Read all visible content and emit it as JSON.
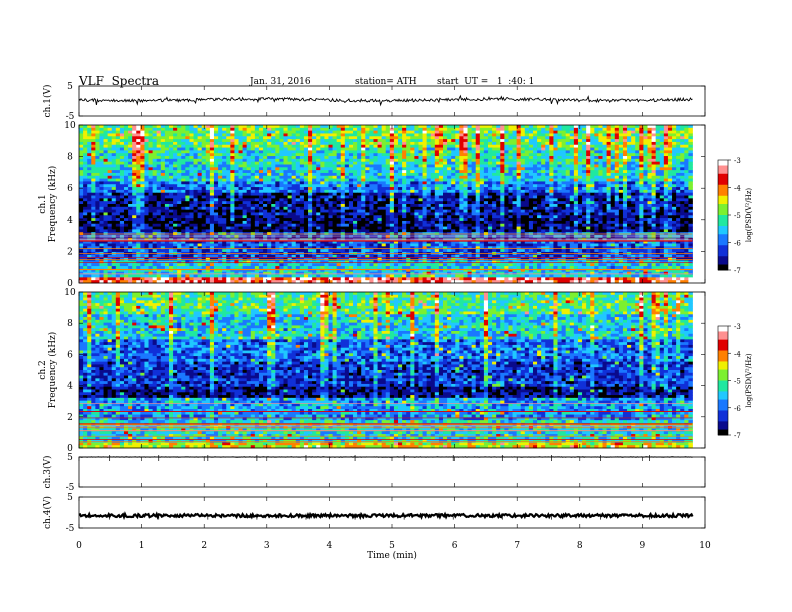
{
  "header": {
    "title": "VLF  Spectra",
    "date": "Jan. 31, 2016",
    "station": "station= ATH",
    "start": "start  UT =   1  :40: 1"
  },
  "colors": {
    "spectrogram_palette": [
      "#000000",
      "#0a0a8c",
      "#1030d8",
      "#1a78ff",
      "#20c8ff",
      "#20e8a0",
      "#7cf030",
      "#f0f000",
      "#ff8000",
      "#e00000",
      "#ff9090",
      "#ffffff"
    ],
    "trace": "#000000"
  },
  "chart_data": [
    {
      "type": "line",
      "panel": "ch1-waveform",
      "ylabel": "ch.1(V)",
      "ylim": [
        -5,
        5
      ],
      "yticks": [
        "5",
        "-5"
      ],
      "x_range_min": [
        0,
        9.8
      ],
      "baseline_V": 0.4,
      "description_values": "noisy waveform near +0.4 V with sporadic spikes"
    },
    {
      "type": "heatmap",
      "panel": "ch1-spectrogram",
      "ylabel": "ch.1\nFrequency (kHz)",
      "ylabel_lines": [
        "ch.1",
        "Frequency  (kHz)"
      ],
      "ylim": [
        0,
        10
      ],
      "yticks": [
        "0",
        "2",
        "4",
        "6",
        "8",
        "10"
      ],
      "x_range_min": [
        0,
        9.8
      ],
      "colorbar": {
        "label": "log(PSD(V²/Hz)",
        "range": [
          -7,
          -3
        ],
        "ticks": [
          "-3",
          "-4",
          "-5",
          "-6",
          "-7"
        ]
      },
      "bands_khz": [
        {
          "f": [
            0.0,
            0.3
          ],
          "level": -3.5
        },
        {
          "f": [
            0.3,
            1.5
          ],
          "level": -5.5
        },
        {
          "f": [
            1.5,
            2.6
          ],
          "level": -6.2
        },
        {
          "f": [
            2.6,
            3.2
          ],
          "level": -6.0
        },
        {
          "f": [
            3.2,
            4.2
          ],
          "level": -6.8
        },
        {
          "f": [
            4.2,
            5.8
          ],
          "level": -6.6
        },
        {
          "f": [
            5.8,
            6.4
          ],
          "level": -6.0
        },
        {
          "f": [
            6.4,
            7.5
          ],
          "level": -5.5
        },
        {
          "f": [
            7.5,
            8.5
          ],
          "level": -5.3
        },
        {
          "f": [
            8.5,
            10.0
          ],
          "level": -5.0
        }
      ]
    },
    {
      "type": "heatmap",
      "panel": "ch2-spectrogram",
      "ylabel": "ch.2\nFrequency (kHz)",
      "ylabel_lines": [
        "ch.2",
        "Frequency  (kHz)"
      ],
      "ylim": [
        0,
        10
      ],
      "yticks": [
        "0",
        "2",
        "4",
        "6",
        "8",
        "10"
      ],
      "x_range_min": [
        0,
        9.8
      ],
      "colorbar": {
        "label": "log(PSD(V²/Hz)",
        "range": [
          -7,
          -3
        ],
        "ticks": [
          "-3",
          "-4",
          "-5",
          "-6",
          "-7"
        ]
      },
      "bands_khz": [
        {
          "f": [
            0.0,
            0.3
          ],
          "level": -4.5
        },
        {
          "f": [
            0.3,
            1.8
          ],
          "level": -5.4
        },
        {
          "f": [
            1.8,
            3.2
          ],
          "level": -5.8
        },
        {
          "f": [
            3.2,
            4.0
          ],
          "level": -6.7
        },
        {
          "f": [
            4.0,
            5.5
          ],
          "level": -6.3
        },
        {
          "f": [
            5.5,
            7.0
          ],
          "level": -6.0
        },
        {
          "f": [
            7.0,
            8.5
          ],
          "level": -5.5
        },
        {
          "f": [
            8.5,
            10.0
          ],
          "level": -5.1
        }
      ]
    },
    {
      "type": "line",
      "panel": "ch3-waveform",
      "ylabel": "ch.3(V)",
      "ylim": [
        -5,
        5
      ],
      "yticks": [
        "5",
        "-5"
      ],
      "x_range_min": [
        0,
        9.8
      ],
      "baseline_V": 5.0
    },
    {
      "type": "line",
      "panel": "ch4-waveform",
      "ylabel": "ch.4(V)",
      "ylim": [
        -5,
        5
      ],
      "yticks": [
        "5",
        "-5"
      ],
      "x_range_min": [
        0,
        9.8
      ],
      "baseline_V": -1.0
    }
  ],
  "xaxis": {
    "label": "Time  (min)",
    "xlim": [
      0,
      10
    ],
    "ticks": [
      "0",
      "1",
      "2",
      "3",
      "4",
      "5",
      "6",
      "7",
      "8",
      "9",
      "10"
    ]
  }
}
